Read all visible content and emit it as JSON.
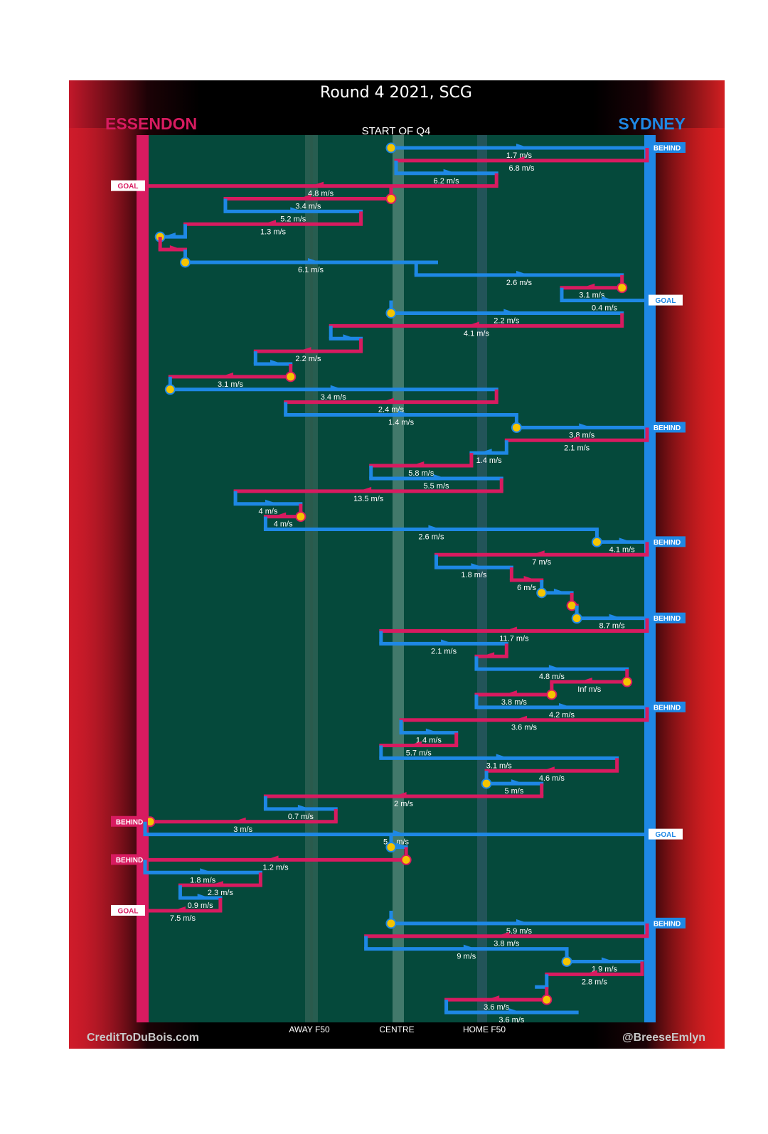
{
  "chart_data": {
    "type": "chain-flow",
    "title": "Round 4 2021, SCG",
    "start_label": "START OF Q4",
    "left_team": "ESSENDON",
    "right_team": "SYDNEY",
    "x_axis_labels": [
      "AWAY F50",
      "CENTRE",
      "HOME F50"
    ],
    "credit_left": "CreditToDuBois.com",
    "credit_right": "@BreeseEmlyn",
    "colors": {
      "essendon": "#d81b60",
      "sydney": "#1e88e5",
      "field": "#05493b",
      "stoppage": "#f5c400"
    },
    "x_scale": "0 = Essendon goal line (left), 1 = Sydney goal line (right)",
    "segments": [
      {
        "team": "sydney",
        "x_from": 0.49,
        "x_to": 1.0,
        "label": "1.7 m/s",
        "stoppage_start": true,
        "result": "BEHIND"
      },
      {
        "team": "essendon",
        "x_from": 1.0,
        "x_to": 0.5,
        "label": "6.8 m/s"
      },
      {
        "team": "sydney",
        "x_from": 0.5,
        "x_to": 0.7,
        "label": "6.2 m/s"
      },
      {
        "team": "essendon",
        "x_from": 0.7,
        "x_to": 0.0,
        "label": "4.8 m/s",
        "result": "GOAL"
      },
      {
        "team": "essendon",
        "x_from": 0.49,
        "x_to": 0.16,
        "label": "3.4 m/s",
        "stoppage_start": true
      },
      {
        "team": "sydney",
        "x_from": 0.16,
        "x_to": 0.43,
        "label": "5.2 m/s"
      },
      {
        "team": "essendon",
        "x_from": 0.43,
        "x_to": 0.08,
        "label": "1.3 m/s"
      },
      {
        "team": "sydney",
        "x_from": 0.08,
        "x_to": 0.03,
        "label": "",
        "stoppage_end": true
      },
      {
        "team": "essendon",
        "x_from": 0.03,
        "x_to": 0.08,
        "label": ""
      },
      {
        "team": "sydney",
        "x_from": 0.08,
        "x_to": 0.58,
        "label": "6.1 m/s",
        "stoppage_start": true
      },
      {
        "team": "sydney",
        "x_from": 0.54,
        "x_to": 0.95,
        "label": "2.6 m/s"
      },
      {
        "team": "essendon",
        "x_from": 0.95,
        "x_to": 0.83,
        "label": "3.1 m/s",
        "stoppage_start": true
      },
      {
        "team": "sydney",
        "x_from": 0.83,
        "x_to": 1.0,
        "label": "0.4 m/s",
        "result": "GOAL"
      },
      {
        "team": "sydney",
        "x_from": 0.49,
        "x_to": 0.95,
        "label": "2.2 m/s",
        "stoppage_start": true
      },
      {
        "team": "essendon",
        "x_from": 0.95,
        "x_to": 0.37,
        "label": "4.1 m/s"
      },
      {
        "team": "sydney",
        "x_from": 0.37,
        "x_to": 0.43,
        "label": ""
      },
      {
        "team": "essendon",
        "x_from": 0.43,
        "x_to": 0.22,
        "label": "2.2 m/s"
      },
      {
        "team": "sydney",
        "x_from": 0.22,
        "x_to": 0.29,
        "label": ""
      },
      {
        "team": "essendon",
        "x_from": 0.29,
        "x_to": 0.05,
        "label": "3.1 m/s",
        "stoppage_start": true
      },
      {
        "team": "sydney",
        "x_from": 0.05,
        "x_to": 0.7,
        "label": "3.4 m/s",
        "stoppage_start": true
      },
      {
        "team": "essendon",
        "x_from": 0.7,
        "x_to": 0.28,
        "label": "2.4 m/s"
      },
      {
        "team": "sydney",
        "x_from": 0.28,
        "x_to": 0.74,
        "label": "1.4 m/s"
      },
      {
        "team": "sydney",
        "x_from": 0.74,
        "x_to": 1.0,
        "label": "3.8 m/s",
        "stoppage_start": true,
        "result": "BEHIND"
      },
      {
        "team": "essendon",
        "x_from": 1.0,
        "x_to": 0.72,
        "label": "2.1 m/s"
      },
      {
        "team": "sydney",
        "x_from": 0.72,
        "x_to": 0.65,
        "label": "1.4 m/s"
      },
      {
        "team": "essendon",
        "x_from": 0.65,
        "x_to": 0.45,
        "label": "5.8 m/s"
      },
      {
        "team": "sydney",
        "x_from": 0.45,
        "x_to": 0.71,
        "label": "5.5 m/s"
      },
      {
        "team": "essendon",
        "x_from": 0.71,
        "x_to": 0.18,
        "label": "13.5 m/s"
      },
      {
        "team": "sydney",
        "x_from": 0.18,
        "x_to": 0.31,
        "label": "4 m/s"
      },
      {
        "team": "essendon",
        "x_from": 0.31,
        "x_to": 0.24,
        "label": "4 m/s",
        "stoppage_start": true
      },
      {
        "team": "sydney",
        "x_from": 0.24,
        "x_to": 0.9,
        "label": "2.6 m/s"
      },
      {
        "team": "sydney",
        "x_from": 0.9,
        "x_to": 1.0,
        "label": "4.1 m/s",
        "stoppage_start": true,
        "result": "BEHIND"
      },
      {
        "team": "essendon",
        "x_from": 1.0,
        "x_to": 0.58,
        "label": "7 m/s"
      },
      {
        "team": "sydney",
        "x_from": 0.58,
        "x_to": 0.73,
        "label": "1.8 m/s"
      },
      {
        "team": "essendon",
        "x_from": 0.73,
        "x_to": 0.79,
        "label": "6 m/s"
      },
      {
        "team": "sydney",
        "x_from": 0.79,
        "x_to": 0.85,
        "label": "",
        "stoppage_start": true
      },
      {
        "team": "essendon",
        "x_from": 0.85,
        "x_to": 0.86,
        "label": "",
        "stoppage_start": true
      },
      {
        "team": "sydney",
        "x_from": 0.86,
        "x_to": 1.0,
        "label": "8.7 m/s",
        "stoppage_start": true,
        "result": "BEHIND"
      },
      {
        "team": "essendon",
        "x_from": 1.0,
        "x_to": 0.47,
        "label": "11.7 m/s"
      },
      {
        "team": "sydney",
        "x_from": 0.47,
        "x_to": 0.72,
        "label": "2.1 m/s"
      },
      {
        "team": "essendon",
        "x_from": 0.72,
        "x_to": 0.66,
        "label": ""
      },
      {
        "team": "sydney",
        "x_from": 0.66,
        "x_to": 0.96,
        "label": "4.8 m/s"
      },
      {
        "team": "essendon",
        "x_from": 0.96,
        "x_to": 0.81,
        "label": "Inf m/s",
        "stoppage_start": true
      },
      {
        "team": "essendon",
        "x_from": 0.81,
        "x_to": 0.66,
        "label": "3.8 m/s",
        "stoppage_start": true
      },
      {
        "team": "sydney",
        "x_from": 0.66,
        "x_to": 1.0,
        "label": "4.2 m/s",
        "result": "BEHIND"
      },
      {
        "team": "essendon",
        "x_from": 1.0,
        "x_to": 0.51,
        "label": "3.6 m/s"
      },
      {
        "team": "sydney",
        "x_from": 0.51,
        "x_to": 0.62,
        "label": "1.4 m/s"
      },
      {
        "team": "essendon",
        "x_from": 0.62,
        "x_to": 0.47,
        "label": "5.7 m/s"
      },
      {
        "team": "sydney",
        "x_from": 0.47,
        "x_to": 0.94,
        "label": "3.1 m/s"
      },
      {
        "team": "essendon",
        "x_from": 0.94,
        "x_to": 0.68,
        "label": "4.6 m/s"
      },
      {
        "team": "sydney",
        "x_from": 0.68,
        "x_to": 0.79,
        "label": "5 m/s",
        "stoppage_start": true
      },
      {
        "team": "essendon",
        "x_from": 0.79,
        "x_to": 0.24,
        "label": "2 m/s"
      },
      {
        "team": "sydney",
        "x_from": 0.24,
        "x_to": 0.38,
        "label": "0.7 m/s"
      },
      {
        "team": "essendon",
        "x_from": 0.38,
        "x_to": 0.01,
        "label": "3 m/s",
        "stoppage_end": true,
        "result": "BEHIND"
      },
      {
        "team": "sydney",
        "x_from": 0.0,
        "x_to": 1.0,
        "label": "5.1 m/s",
        "result": "GOAL"
      },
      {
        "team": "sydney",
        "x_from": 0.49,
        "x_to": 0.52,
        "label": "",
        "stoppage_start": true
      },
      {
        "team": "essendon",
        "x_from": 0.52,
        "x_to": 0.0,
        "label": "1.2 m/s",
        "stoppage_start": true,
        "result": "BEHIND"
      },
      {
        "team": "sydney",
        "x_from": 0.0,
        "x_to": 0.23,
        "label": "1.8 m/s"
      },
      {
        "team": "essendon",
        "x_from": 0.23,
        "x_to": 0.07,
        "label": "2.3 m/s"
      },
      {
        "team": "sydney",
        "x_from": 0.07,
        "x_to": 0.15,
        "label": "0.9 m/s"
      },
      {
        "team": "essendon",
        "x_from": 0.15,
        "x_to": 0.0,
        "label": "7.5 m/s",
        "result": "GOAL"
      },
      {
        "team": "sydney",
        "x_from": 0.49,
        "x_to": 1.0,
        "label": "5.9 m/s",
        "stoppage_start": true,
        "result": "BEHIND"
      },
      {
        "team": "essendon",
        "x_from": 1.0,
        "x_to": 0.44,
        "label": "3.8 m/s"
      },
      {
        "team": "sydney",
        "x_from": 0.44,
        "x_to": 0.84,
        "label": "9 m/s"
      },
      {
        "team": "sydney",
        "x_from": 0.84,
        "x_to": 0.99,
        "label": "1.9 m/s",
        "stoppage_start": true
      },
      {
        "team": "essendon",
        "x_from": 0.99,
        "x_to": 0.8,
        "label": "2.8 m/s"
      },
      {
        "team": "sydney",
        "x_from": 0.8,
        "x_to": 0.78,
        "label": ""
      },
      {
        "team": "essendon",
        "x_from": 0.8,
        "x_to": 0.6,
        "label": "3.6 m/s",
        "stoppage_start": true
      },
      {
        "team": "sydney",
        "x_from": 0.6,
        "x_to": 0.86,
        "label": "3.6 m/s"
      }
    ]
  }
}
